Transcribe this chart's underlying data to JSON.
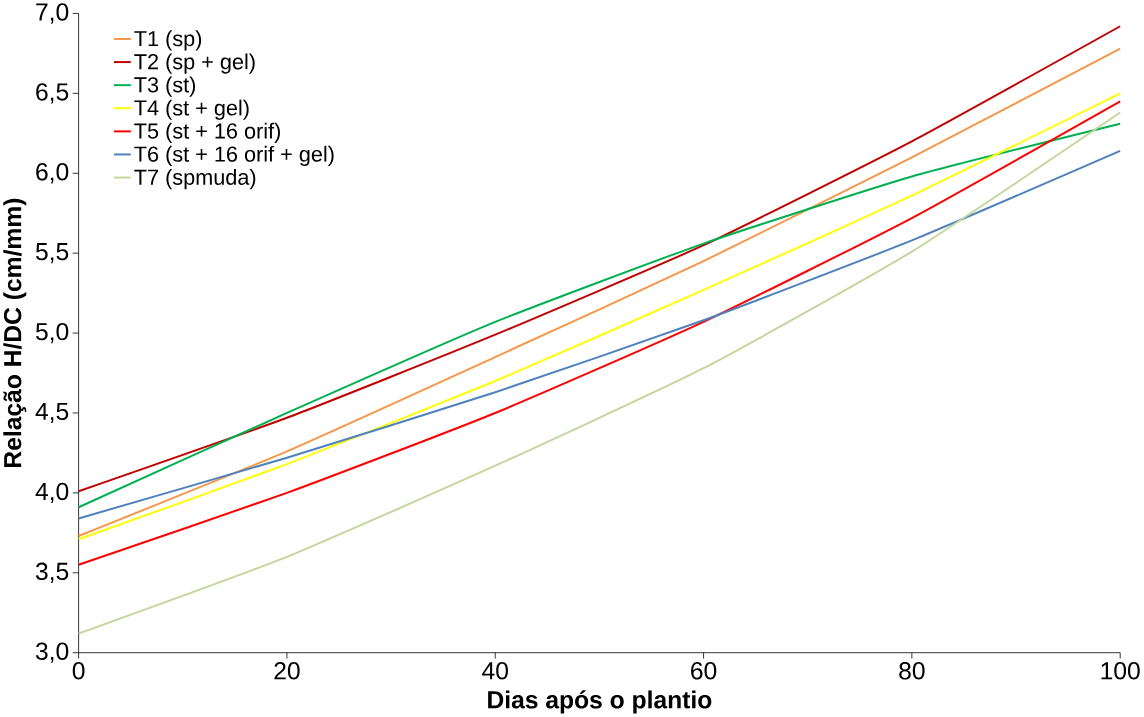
{
  "chart_data": {
    "type": "line",
    "xlabel": "Dias após o plantio",
    "ylabel": "Relação H/DC (cm/mm)",
    "xlim": [
      0,
      100
    ],
    "xticks": [
      0,
      20,
      40,
      60,
      80,
      100
    ],
    "ylim": [
      3.0,
      7.0
    ],
    "yticks": [
      {
        "value": 3.0,
        "label": "3,0"
      },
      {
        "value": 3.5,
        "label": "3,5"
      },
      {
        "value": 4.0,
        "label": "4,0"
      },
      {
        "value": 4.5,
        "label": "4,5"
      },
      {
        "value": 5.0,
        "label": "5,0"
      },
      {
        "value": 5.5,
        "label": "5,5"
      },
      {
        "value": 6.0,
        "label": "6,0"
      },
      {
        "value": 6.5,
        "label": "6,5"
      },
      {
        "value": 7.0,
        "label": "7,0"
      }
    ],
    "x": [
      0,
      20,
      40,
      60,
      80,
      100
    ],
    "grid": false,
    "legend": "top left",
    "marker": "none",
    "line_style": "solid",
    "series": [
      {
        "name": "T1 (sp)",
        "color": "#f79646",
        "values": [
          3.73,
          4.26,
          4.85,
          5.45,
          6.1,
          6.78
        ]
      },
      {
        "name": "T2 (sp + gel)",
        "color": "#c00000",
        "values": [
          4.01,
          4.47,
          4.99,
          5.55,
          6.2,
          6.92
        ]
      },
      {
        "name": "T3 (st)",
        "color": "#00b050",
        "values": [
          3.91,
          4.5,
          5.07,
          5.56,
          5.98,
          6.31
        ]
      },
      {
        "name": "T4 (st + gel)",
        "color": "#ffff00",
        "values": [
          3.71,
          4.18,
          4.7,
          5.27,
          5.86,
          6.5
        ]
      },
      {
        "name": "T5 (st + 16 orif)",
        "color": "#ff0000",
        "values": [
          3.55,
          4.0,
          4.5,
          5.07,
          5.72,
          6.45
        ]
      },
      {
        "name": "T6 (st + 16 orif + gel)",
        "color": "#4f81bd",
        "values": [
          3.84,
          4.22,
          4.63,
          5.08,
          5.58,
          6.14
        ]
      },
      {
        "name": "T7 (spmuda)",
        "color": "#c3d69b",
        "values": [
          3.12,
          3.6,
          4.17,
          4.78,
          5.51,
          6.38
        ]
      }
    ]
  }
}
